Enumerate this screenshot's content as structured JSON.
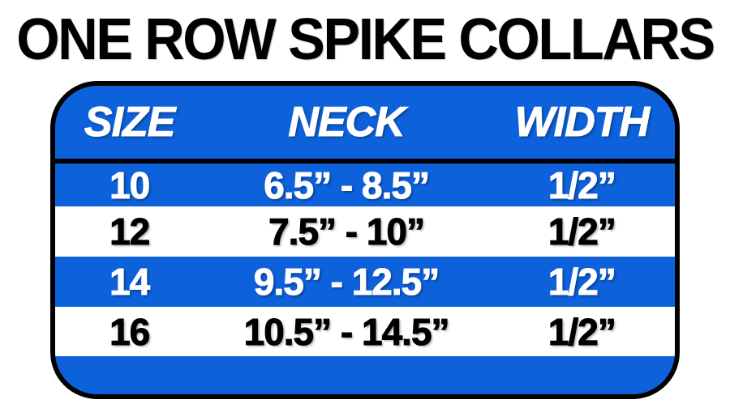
{
  "title": "ONE ROW SPIKE COLLARS",
  "colors": {
    "blue": "#0d62dc",
    "border": "#000000",
    "white_text": "#ffffff",
    "black_text": "#000000",
    "page_bg": "#ffffff"
  },
  "chart_data": {
    "type": "table",
    "title": "ONE ROW SPIKE COLLARS",
    "columns": [
      "SIZE",
      "NECK",
      "WIDTH"
    ],
    "rows": [
      [
        "10",
        "6.5” - 8.5”",
        "1/2”"
      ],
      [
        "12",
        "7.5” - 10”",
        "1/2”"
      ],
      [
        "14",
        "9.5” - 12.5”",
        "1/2”"
      ],
      [
        "16",
        "10.5” - 14.5”",
        "1/2”"
      ]
    ],
    "layout_hints": {
      "row_fill_pattern": [
        "blue",
        "white",
        "blue",
        "white"
      ],
      "header_fill": "blue",
      "container_shape": "rounded-rectangle-black-border"
    }
  }
}
